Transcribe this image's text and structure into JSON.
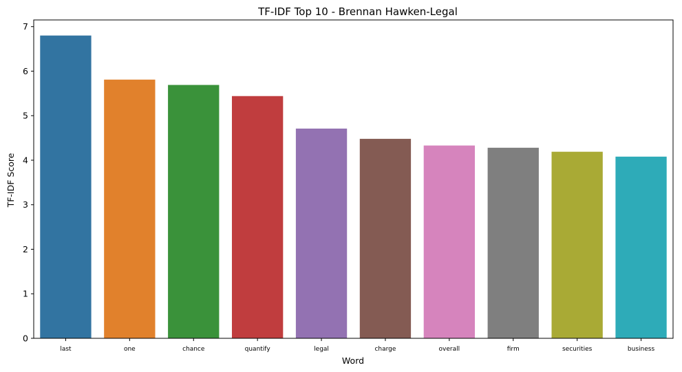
{
  "chart_data": {
    "type": "bar",
    "title": "TF-IDF Top 10 - Brennan Hawken-Legal",
    "xlabel": "Word",
    "ylabel": "TF-IDF Score",
    "categories": [
      "last",
      "one",
      "chance",
      "quantify",
      "legal",
      "charge",
      "overall",
      "firm",
      "securities",
      "business"
    ],
    "values": [
      6.8,
      5.81,
      5.69,
      5.44,
      4.71,
      4.48,
      4.33,
      4.28,
      4.19,
      4.08
    ],
    "colors": [
      "#3274a1",
      "#e1812c",
      "#3a923a",
      "#c03d3e",
      "#9372b2",
      "#845b53",
      "#d684bd",
      "#7f7f7f",
      "#a9aa35",
      "#2eabb8"
    ],
    "ylim": [
      0,
      7.15
    ],
    "yticks": [
      "0",
      "1",
      "2",
      "3",
      "4",
      "5",
      "6",
      "7"
    ],
    "grid": false,
    "legend": "none"
  }
}
